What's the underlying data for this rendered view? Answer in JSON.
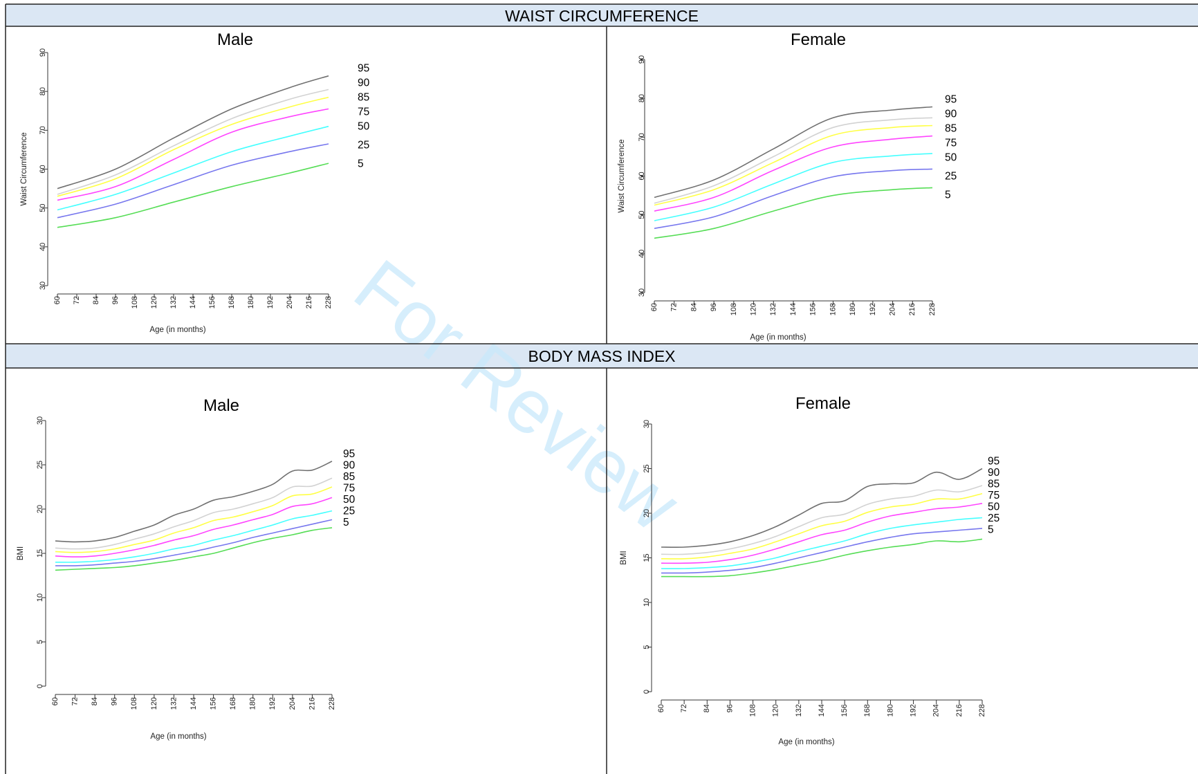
{
  "sections": [
    {
      "title": "WAIST CIRCUMFERENCE"
    },
    {
      "title": "BODY MASS INDEX"
    }
  ],
  "watermark": "For Review",
  "chart_data": [
    {
      "type": "line",
      "title": "Male",
      "xlabel": "Age (in months)",
      "ylabel": "Waist Circumference",
      "xlim": [
        60,
        228
      ],
      "ylim": [
        30,
        90
      ],
      "x_ticks": [
        "60",
        "72",
        "84",
        "96",
        "108",
        "120",
        "132",
        "144",
        "156",
        "168",
        "180",
        "192",
        "204",
        "216",
        "228"
      ],
      "y_ticks": [
        "30",
        "40",
        "50",
        "60",
        "70",
        "80",
        "90"
      ],
      "grid": false,
      "legend": "right",
      "x": [
        60,
        96,
        132,
        168,
        204,
        228
      ],
      "series": [
        {
          "name": "95",
          "color": "#707070",
          "values": [
            55,
            60,
            68,
            75.5,
            81,
            84
          ]
        },
        {
          "name": "90",
          "color": "#d2d2d2",
          "values": [
            53.5,
            58.5,
            66,
            73,
            78,
            80.5
          ]
        },
        {
          "name": "85",
          "color": "#ffff44",
          "values": [
            53,
            57.5,
            65,
            71.5,
            76,
            78.5
          ]
        },
        {
          "name": "75",
          "color": "#ff44ff",
          "values": [
            52,
            55.5,
            62.5,
            69.5,
            73.5,
            75.5
          ]
        },
        {
          "name": "50",
          "color": "#44ffff",
          "values": [
            49.5,
            53.5,
            59,
            64.5,
            68.5,
            71
          ]
        },
        {
          "name": "25",
          "color": "#7777ee",
          "values": [
            47.5,
            51,
            56,
            61,
            64.5,
            66.5
          ]
        },
        {
          "name": "5",
          "color": "#55dd55",
          "values": [
            45,
            47.5,
            51.5,
            55.5,
            59,
            61.5
          ]
        }
      ]
    },
    {
      "type": "line",
      "title": "Female",
      "xlabel": "Age (in months)",
      "ylabel": "Waist Circumference",
      "xlim": [
        60,
        228
      ],
      "ylim": [
        30,
        90
      ],
      "x_ticks": [
        "60",
        "72",
        "84",
        "96",
        "108",
        "120",
        "132",
        "144",
        "156",
        "168",
        "180",
        "192",
        "204",
        "216",
        "228"
      ],
      "y_ticks": [
        "30",
        "40",
        "50",
        "60",
        "70",
        "80",
        "90"
      ],
      "grid": false,
      "legend": "right",
      "x": [
        60,
        96,
        132,
        168,
        204,
        228
      ],
      "series": [
        {
          "name": "95",
          "color": "#707070",
          "values": [
            54.5,
            59,
            67,
            75,
            77,
            77.8
          ]
        },
        {
          "name": "90",
          "color": "#d2d2d2",
          "values": [
            53,
            57.5,
            65,
            72.5,
            74.5,
            75
          ]
        },
        {
          "name": "85",
          "color": "#ffff44",
          "values": [
            52.5,
            56.5,
            63.5,
            70.5,
            72.5,
            73
          ]
        },
        {
          "name": "75",
          "color": "#ff44ff",
          "values": [
            51,
            54.5,
            61.5,
            67.5,
            69.5,
            70.3
          ]
        },
        {
          "name": "50",
          "color": "#44ffff",
          "values": [
            48.5,
            52,
            58,
            63.5,
            65.2,
            65.8
          ]
        },
        {
          "name": "25",
          "color": "#7777ee",
          "values": [
            46.5,
            49.5,
            55,
            59.8,
            61.4,
            61.8
          ]
        },
        {
          "name": "5",
          "color": "#55dd55",
          "values": [
            44,
            46.5,
            51,
            55,
            56.5,
            57
          ]
        }
      ]
    },
    {
      "type": "line",
      "title": "Male",
      "xlabel": "Age (in months)",
      "ylabel": "BMI",
      "xlim": [
        60,
        228
      ],
      "ylim": [
        0,
        30
      ],
      "x_ticks": [
        "60",
        "72",
        "84",
        "96",
        "108",
        "120",
        "132",
        "144",
        "156",
        "168",
        "180",
        "192",
        "204",
        "216",
        "228"
      ],
      "y_ticks": [
        "0",
        "5",
        "10",
        "15",
        "20",
        "25",
        "30"
      ],
      "grid": false,
      "legend": "right",
      "x": [
        60,
        72,
        84,
        96,
        108,
        120,
        132,
        144,
        156,
        168,
        180,
        192,
        204,
        216,
        228
      ],
      "series": [
        {
          "name": "95",
          "color": "#707070",
          "values": [
            16.4,
            16.3,
            16.4,
            16.8,
            17.5,
            18.2,
            19.3,
            20.0,
            21.0,
            21.4,
            22.0,
            22.8,
            24.3,
            24.4,
            25.4
          ]
        },
        {
          "name": "90",
          "color": "#d2d2d2",
          "values": [
            15.6,
            15.5,
            15.6,
            16.0,
            16.6,
            17.2,
            18.0,
            18.7,
            19.6,
            20.0,
            20.6,
            21.3,
            22.5,
            22.6,
            23.5
          ]
        },
        {
          "name": "85",
          "color": "#ffff44",
          "values": [
            15.2,
            15.1,
            15.2,
            15.5,
            16.0,
            16.5,
            17.3,
            17.9,
            18.7,
            19.1,
            19.7,
            20.4,
            21.5,
            21.7,
            22.5
          ]
        },
        {
          "name": "75",
          "color": "#ff44ff",
          "values": [
            14.7,
            14.6,
            14.7,
            15.0,
            15.4,
            15.9,
            16.5,
            17.0,
            17.7,
            18.2,
            18.8,
            19.4,
            20.3,
            20.6,
            21.3
          ]
        },
        {
          "name": "50",
          "color": "#44ffff",
          "values": [
            14.0,
            14.0,
            14.1,
            14.3,
            14.6,
            15.0,
            15.5,
            15.9,
            16.5,
            17.0,
            17.6,
            18.2,
            18.9,
            19.3,
            19.8
          ]
        },
        {
          "name": "25",
          "color": "#7777ee",
          "values": [
            13.6,
            13.6,
            13.7,
            13.9,
            14.1,
            14.4,
            14.8,
            15.2,
            15.7,
            16.2,
            16.8,
            17.3,
            17.8,
            18.3,
            18.8
          ]
        },
        {
          "name": "5",
          "color": "#55dd55",
          "values": [
            13.1,
            13.2,
            13.3,
            13.4,
            13.6,
            13.9,
            14.2,
            14.6,
            15.0,
            15.6,
            16.2,
            16.7,
            17.1,
            17.6,
            17.9
          ]
        }
      ]
    },
    {
      "type": "line",
      "title": "Female",
      "xlabel": "Age (in months)",
      "ylabel": "BMI",
      "xlim": [
        60,
        228
      ],
      "ylim": [
        0,
        30
      ],
      "x_ticks": [
        "60",
        "72",
        "84",
        "96",
        "108",
        "120",
        "132",
        "144",
        "156",
        "168",
        "180",
        "192",
        "204",
        "216",
        "228"
      ],
      "y_ticks": [
        "0",
        "5",
        "10",
        "15",
        "20",
        "25",
        "30"
      ],
      "grid": false,
      "legend": "right",
      "x": [
        60,
        72,
        84,
        96,
        108,
        120,
        132,
        144,
        156,
        168,
        180,
        192,
        204,
        216,
        228
      ],
      "series": [
        {
          "name": "95",
          "color": "#707070",
          "values": [
            16.2,
            16.2,
            16.4,
            16.8,
            17.5,
            18.5,
            19.8,
            21.1,
            21.4,
            23.0,
            23.3,
            23.4,
            24.6,
            23.8,
            25.0
          ]
        },
        {
          "name": "90",
          "color": "#d2d2d2",
          "values": [
            15.4,
            15.4,
            15.6,
            16.0,
            16.6,
            17.4,
            18.5,
            19.5,
            19.9,
            21.0,
            21.6,
            21.9,
            22.6,
            22.4,
            23.1
          ]
        },
        {
          "name": "85",
          "color": "#ffff44",
          "values": [
            14.9,
            14.9,
            15.1,
            15.5,
            16.0,
            16.8,
            17.7,
            18.6,
            19.1,
            20.1,
            20.7,
            21.0,
            21.6,
            21.6,
            22.2
          ]
        },
        {
          "name": "75",
          "color": "#ff44ff",
          "values": [
            14.4,
            14.4,
            14.5,
            14.8,
            15.3,
            16.0,
            16.8,
            17.6,
            18.1,
            19.0,
            19.7,
            20.1,
            20.5,
            20.7,
            21.1
          ]
        },
        {
          "name": "50",
          "color": "#44ffff",
          "values": [
            13.8,
            13.8,
            13.9,
            14.1,
            14.5,
            15.0,
            15.7,
            16.3,
            16.9,
            17.7,
            18.3,
            18.7,
            19.0,
            19.3,
            19.5
          ]
        },
        {
          "name": "25",
          "color": "#7777ee",
          "values": [
            13.3,
            13.3,
            13.4,
            13.6,
            13.9,
            14.4,
            15.0,
            15.6,
            16.2,
            16.8,
            17.3,
            17.7,
            17.9,
            18.1,
            18.3
          ]
        },
        {
          "name": "5",
          "color": "#55dd55",
          "values": [
            12.9,
            12.9,
            12.9,
            13.0,
            13.3,
            13.7,
            14.2,
            14.7,
            15.3,
            15.8,
            16.2,
            16.5,
            16.9,
            16.8,
            17.1
          ]
        }
      ]
    }
  ]
}
